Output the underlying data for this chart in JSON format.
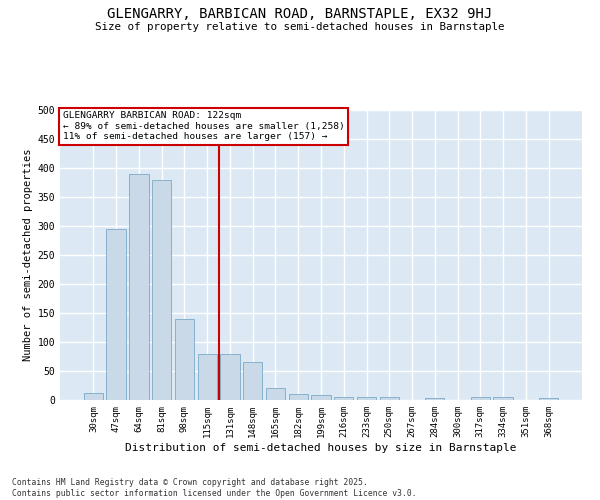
{
  "title": "GLENGARRY, BARBICAN ROAD, BARNSTAPLE, EX32 9HJ",
  "subtitle": "Size of property relative to semi-detached houses in Barnstaple",
  "xlabel": "Distribution of semi-detached houses by size in Barnstaple",
  "ylabel": "Number of semi-detached properties",
  "categories": [
    "30sqm",
    "47sqm",
    "64sqm",
    "81sqm",
    "98sqm",
    "115sqm",
    "131sqm",
    "148sqm",
    "165sqm",
    "182sqm",
    "199sqm",
    "216sqm",
    "233sqm",
    "250sqm",
    "267sqm",
    "284sqm",
    "300sqm",
    "317sqm",
    "334sqm",
    "351sqm",
    "368sqm"
  ],
  "values": [
    12,
    295,
    390,
    380,
    140,
    80,
    80,
    65,
    20,
    10,
    8,
    5,
    5,
    5,
    0,
    3,
    0,
    5,
    5,
    0,
    3
  ],
  "bar_color": "#c9d9e8",
  "bar_edge_color": "#7aaac8",
  "red_line_index": 6,
  "red_line_color": "#cc0000",
  "annotation_box_color": "#cc0000",
  "annotation_text": "GLENGARRY BARBICAN ROAD: 122sqm\n← 89% of semi-detached houses are smaller (1,258)\n11% of semi-detached houses are larger (157) →",
  "background_color": "#dce9f5",
  "grid_color": "#ffffff",
  "ylim": [
    0,
    500
  ],
  "yticks": [
    0,
    50,
    100,
    150,
    200,
    250,
    300,
    350,
    400,
    450,
    500
  ],
  "footer": "Contains HM Land Registry data © Crown copyright and database right 2025.\nContains public sector information licensed under the Open Government Licence v3.0."
}
